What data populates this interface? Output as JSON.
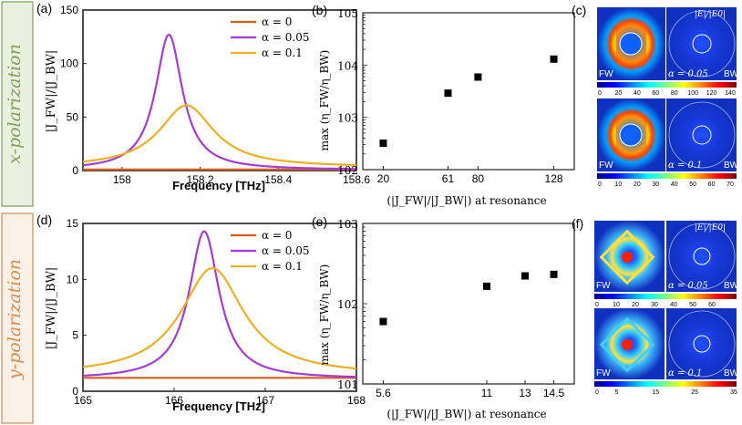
{
  "figure": {
    "row_x_label": "x-polarization",
    "row_y_label": "y-polarization",
    "colors": {
      "row_x_bg": "#e9f0dd",
      "row_x_border": "#8fb07a",
      "row_x_text": "#7fa05a",
      "row_y_bg": "#fcf1e7",
      "row_y_border": "#d9a070",
      "row_y_text": "#d98a4a",
      "alpha0": "#e05a1a",
      "alpha005": "#a33cd6",
      "alpha01": "#eeb022"
    }
  },
  "panels": {
    "a": {
      "label": "(a)"
    },
    "b": {
      "label": "(b)"
    },
    "c": {
      "label": "(c)",
      "ratio_label": "|E|/|E0|",
      "fw_label": "FW",
      "bw_label": "BW",
      "alpha_top": "α = 0.05",
      "alpha_bottom": "α = 0.1"
    },
    "d": {
      "label": "(d)"
    },
    "e": {
      "label": "(e)"
    },
    "f": {
      "label": "(f)",
      "ratio_label": "|E|/|E0|",
      "fw_label": "FW",
      "bw_label": "BW",
      "alpha_top": "α = 0.05",
      "alpha_bottom": "α = 0.1"
    }
  },
  "colorbars": {
    "c_top": [
      "0",
      "20",
      "40",
      "60",
      "80",
      "100",
      "120",
      "140"
    ],
    "c_bottom": [
      "0",
      "10",
      "20",
      "30",
      "40",
      "50",
      "60",
      "70"
    ],
    "f_top": [
      "0",
      "10",
      "20",
      "30",
      "40",
      "50",
      "60"
    ],
    "f_bottom": [
      "0",
      "5",
      "15",
      "25",
      "35"
    ]
  },
  "chart_data": [
    {
      "id": "a",
      "type": "line",
      "xlabel": "Frequency [THz]",
      "ylabel": "|J_FW|/|J_BW|",
      "xlim": [
        157.9,
        158.6
      ],
      "ylim": [
        0,
        150
      ],
      "xticks": [
        "158",
        "158.2",
        "158.4",
        "158.6"
      ],
      "yticks": [
        "0",
        "50",
        "100",
        "150"
      ],
      "legend": "top-right",
      "series": [
        {
          "name": "α = 0",
          "color": "#e05a1a",
          "peak_x": 158.12,
          "peak_y": 1,
          "base": 1,
          "gamma": 0.03
        },
        {
          "name": "α = 0.05",
          "color": "#a33cd6",
          "peak_x": 158.12,
          "peak_y": 127,
          "base": 0.5,
          "gamma": 0.042
        },
        {
          "name": "α = 0.1",
          "color": "#eeb022",
          "peak_x": 158.165,
          "peak_y": 61,
          "base": 3,
          "gamma": 0.085
        }
      ]
    },
    {
      "id": "b",
      "type": "scatter",
      "xlabel": "(|J_FW|/|J_BW|) at resonance",
      "ylabel": "max (η_FW/η_BW)",
      "yscale": "log",
      "ylim": [
        100,
        100000
      ],
      "xticks": [
        "20",
        "61",
        "80",
        "128"
      ],
      "yticks": [
        "10^2",
        "10^3",
        "10^4",
        "10^5"
      ],
      "x": [
        20,
        61,
        80,
        128
      ],
      "y": [
        320,
        2900,
        5900,
        13000
      ]
    },
    {
      "id": "d",
      "type": "line",
      "xlabel": "Frequency [THz]",
      "ylabel": "|J_FW|/|J_BW|",
      "xlim": [
        165,
        168
      ],
      "ylim": [
        0,
        15
      ],
      "xticks": [
        "165",
        "166",
        "167",
        "168"
      ],
      "yticks": [
        "0",
        "5",
        "10",
        "15"
      ],
      "legend": "top-right",
      "series": [
        {
          "name": "α = 0",
          "color": "#e05a1a",
          "peak_x": 166.3,
          "peak_y": 1.2,
          "base": 1.2,
          "gamma": 0.2
        },
        {
          "name": "α = 0.05",
          "color": "#a33cd6",
          "peak_x": 166.33,
          "peak_y": 14.3,
          "base": 1.1,
          "gamma": 0.2
        },
        {
          "name": "α = 0.1",
          "color": "#eeb022",
          "peak_x": 166.42,
          "peak_y": 11,
          "base": 1.4,
          "gamma": 0.42
        }
      ]
    },
    {
      "id": "e",
      "type": "scatter",
      "xlabel": "(|J_FW|/|J_BW|) at resonance",
      "ylabel": "max (η_FW/η_BW)",
      "yscale": "log",
      "ylim": [
        10,
        1000
      ],
      "xticks": [
        "5.6",
        "11",
        "13",
        "14.5"
      ],
      "yticks": [
        "10^1",
        "10^2",
        "10^3"
      ],
      "x": [
        5.6,
        11,
        13,
        14.5
      ],
      "y": [
        60,
        165,
        222,
        232
      ]
    }
  ]
}
